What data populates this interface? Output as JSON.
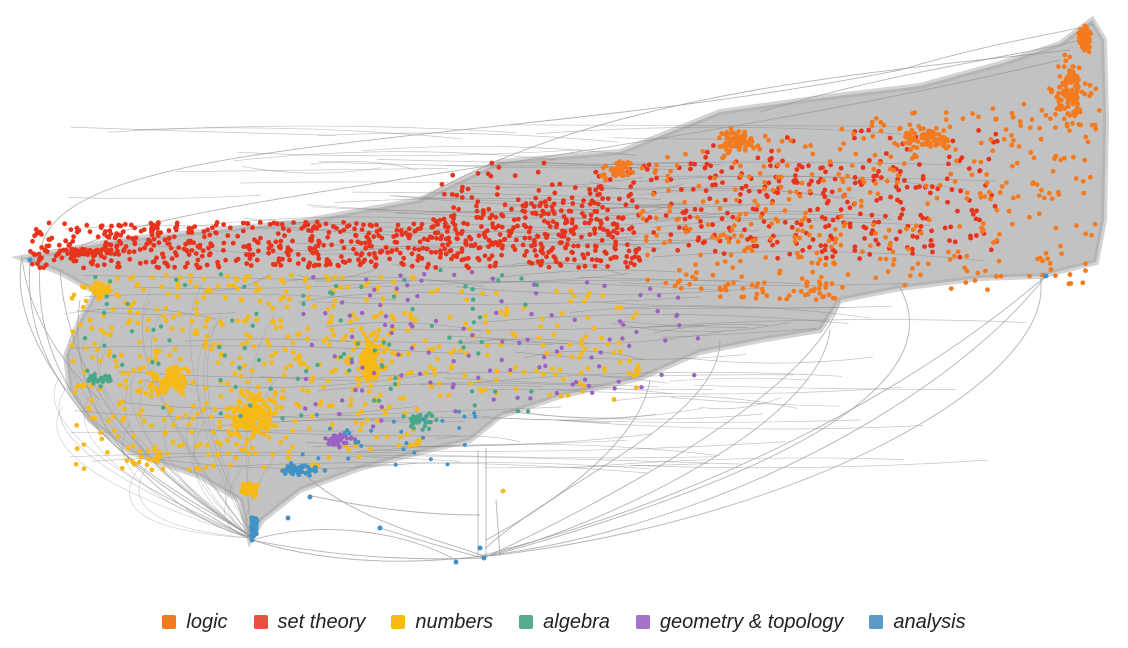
{
  "diagram": {
    "type": "node-link graph",
    "edge_color": "#9a9a9a",
    "node_colors": {
      "logic": "#f47a1f",
      "set_theory": "#e8341c",
      "numbers": "#f7b916",
      "algebra": "#4aa88a",
      "geometry_topology": "#9b62c3",
      "analysis": "#3f93c6"
    }
  },
  "legend": {
    "items": [
      {
        "label": "logic",
        "color": "#f47a1f",
        "icon": "square-swatch"
      },
      {
        "label": "set theory",
        "color": "#e8513f",
        "icon": "square-swatch"
      },
      {
        "label": "numbers",
        "color": "#f7b916",
        "icon": "square-swatch"
      },
      {
        "label": "algebra",
        "color": "#56ab8c",
        "icon": "square-swatch"
      },
      {
        "label": "geometry & topology",
        "color": "#a273c6",
        "icon": "square-swatch"
      },
      {
        "label": "analysis",
        "color": "#5a9cc6",
        "icon": "square-swatch"
      }
    ]
  }
}
